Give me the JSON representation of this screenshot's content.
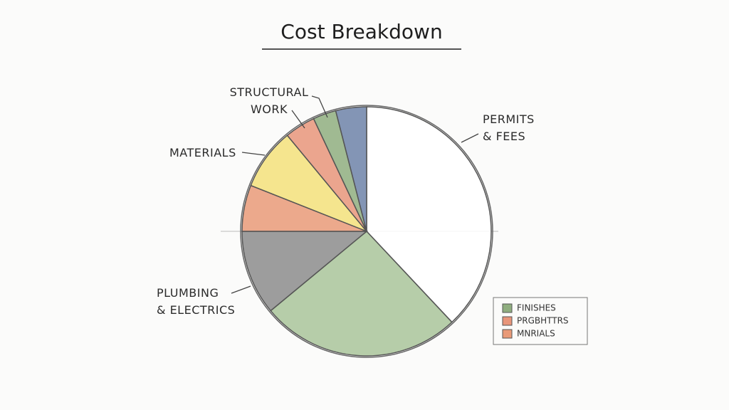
{
  "chart_data": {
    "type": "pie",
    "title": "Cost Breakdown",
    "categories": [
      "PERMITS\n& FEES",
      null,
      "PLUMBING\n& ELECTRICS",
      null,
      "MATERIALS",
      null,
      "STRUCTURAL\nWORK",
      null
    ],
    "values": [
      38,
      26,
      11,
      6,
      8,
      4,
      3,
      4
    ],
    "colors": [
      "#ffffff",
      "#a9c49a",
      "#8c8c8c",
      "#e99a78",
      "#f3e07a",
      "#e8957a",
      "#8fae7f",
      "#6d83a8"
    ],
    "legend": [
      {
        "label": "FINISHES",
        "color": "#8fae7f"
      },
      {
        "label": "PRGBHTTRS",
        "color": "#e8957a"
      },
      {
        "label": "MNRIALS",
        "color": "#e99a78"
      }
    ]
  }
}
